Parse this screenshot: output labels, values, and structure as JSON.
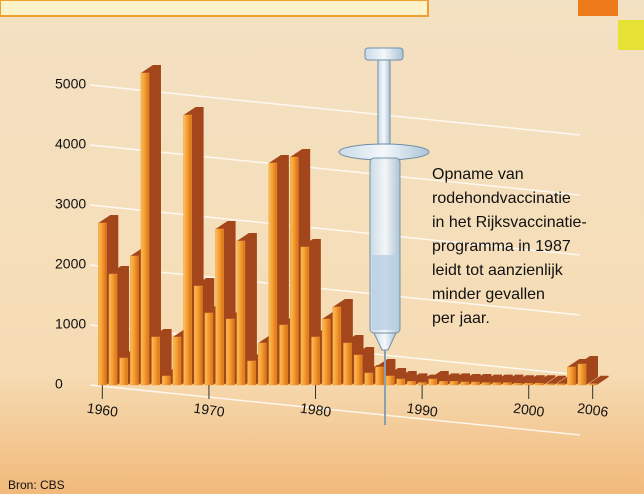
{
  "chart_data": {
    "type": "bar",
    "x": [
      1960,
      1961,
      1962,
      1963,
      1964,
      1965,
      1966,
      1967,
      1968,
      1969,
      1970,
      1971,
      1972,
      1973,
      1974,
      1975,
      1976,
      1977,
      1978,
      1979,
      1980,
      1981,
      1982,
      1983,
      1984,
      1985,
      1986,
      1987,
      1988,
      1989,
      1990,
      1991,
      1992,
      1993,
      1994,
      1995,
      1996,
      1997,
      1998,
      1999,
      2000,
      2001,
      2002,
      2003,
      2004,
      2005,
      2006
    ],
    "values": [
      2700,
      1850,
      450,
      2150,
      5200,
      800,
      150,
      800,
      4500,
      1650,
      1200,
      2600,
      1100,
      2400,
      400,
      700,
      3700,
      1000,
      3800,
      2300,
      800,
      1100,
      1300,
      700,
      500,
      200,
      300,
      150,
      100,
      60,
      40,
      100,
      60,
      60,
      50,
      50,
      40,
      40,
      40,
      30,
      30,
      30,
      20,
      20,
      300,
      350,
      20
    ],
    "color": "#f39a2e",
    "xlim": [
      1959.5,
      2006.5
    ],
    "ylim": [
      0,
      5400
    ],
    "xticks": [
      1960,
      1970,
      1980,
      1990,
      2000,
      2006
    ],
    "yticks": [
      0,
      1000,
      2000,
      3000,
      4000,
      5000
    ],
    "grid": true,
    "annotation": [
      "Opname van",
      "rodehondvaccinatie",
      "in het Rijksvaccinatie-",
      "programma in 1987",
      "leidt tot aanzienlijk",
      "minder gevallen",
      "per jaar."
    ],
    "source": "Bron: CBS"
  }
}
